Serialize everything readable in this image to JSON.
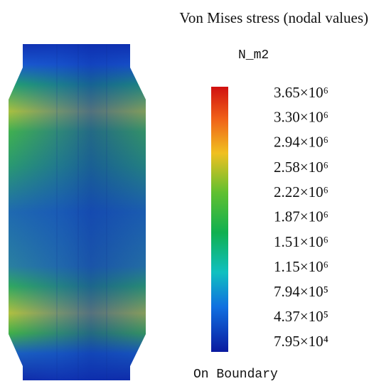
{
  "title": "Von Mises stress (nodal values)",
  "unit": "N_m2",
  "colorbar": {
    "ticks": [
      {
        "value": 3650000,
        "label": "3.65×10⁶"
      },
      {
        "value": 3300000,
        "label": "3.30×10⁶"
      },
      {
        "value": 2940000,
        "label": "2.94×10⁶"
      },
      {
        "value": 2580000,
        "label": "2.58×10⁶"
      },
      {
        "value": 2220000,
        "label": "2.22×10⁶"
      },
      {
        "value": 1870000,
        "label": "1.87×10⁶"
      },
      {
        "value": 1510000,
        "label": "1.51×10⁶"
      },
      {
        "value": 1150000,
        "label": "1.15×10⁶"
      },
      {
        "value": 794000,
        "label": "7.94×10⁵"
      },
      {
        "value": 437000,
        "label": "4.37×10⁵"
      },
      {
        "value": 79500,
        "label": "7.95×10⁴"
      }
    ]
  },
  "footer": "On Boundary"
}
